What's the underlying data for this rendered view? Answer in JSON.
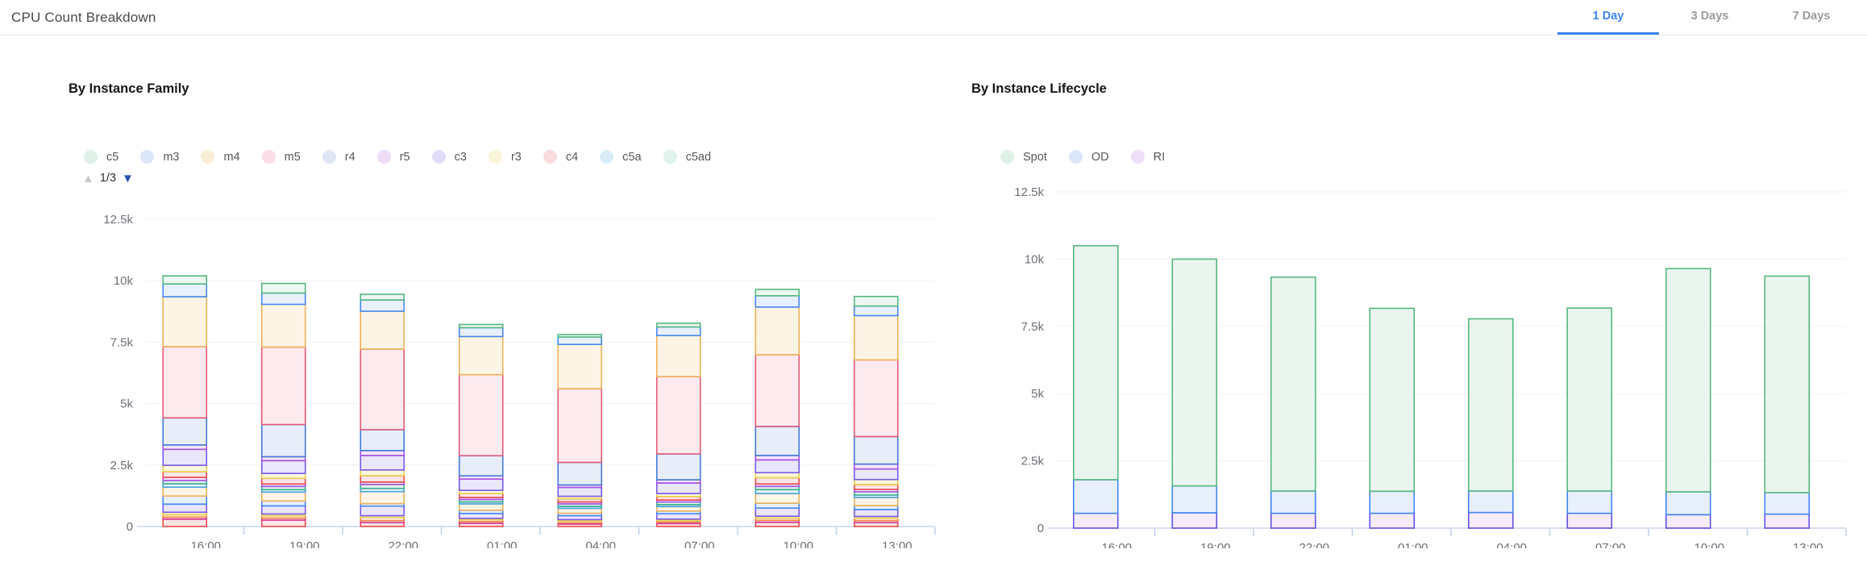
{
  "header": {
    "title": "CPU Count Breakdown",
    "tabs": [
      {
        "label": "1 Day",
        "active": true
      },
      {
        "label": "3 Days",
        "active": false
      },
      {
        "label": "7 Days",
        "active": false
      }
    ]
  },
  "colors": {
    "accent": "#3D85F4",
    "tab_inactive": "#9B9B9B",
    "axis_text": "#6E7079",
    "grid_line": "#F1F1F1",
    "axis_line": "#CBD5EA",
    "tick_line": "#C2CFEF",
    "pager_up_arrow": "#C9C9C9",
    "pager_down_arrow": "#2B50B4"
  },
  "chart_data": [
    {
      "type": "bar",
      "stacked": true,
      "title": "By Instance Family",
      "legend": {
        "page": "1/3",
        "items": [
          {
            "name": "c5",
            "swatch": "#DFF0E6"
          },
          {
            "name": "m3",
            "swatch": "#DCE7FB"
          },
          {
            "name": "m4",
            "swatch": "#FAEDD6"
          },
          {
            "name": "m5",
            "swatch": "#FADEE6"
          },
          {
            "name": "r4",
            "swatch": "#DFE7F7"
          },
          {
            "name": "r5",
            "swatch": "#EFDCF9"
          },
          {
            "name": "c3",
            "swatch": "#E3DDFB"
          },
          {
            "name": "r3",
            "swatch": "#FAF5D9"
          },
          {
            "name": "c4",
            "swatch": "#FADCDE"
          },
          {
            "name": "c5a",
            "swatch": "#D9EDF9"
          },
          {
            "name": "c5ad",
            "swatch": "#DFF2EB"
          }
        ]
      },
      "categories": [
        "16:00",
        "19:00",
        "22:00",
        "01:00",
        "04:00",
        "07:00",
        "10:00",
        "13:00"
      ],
      "ylim": [
        0,
        12500
      ],
      "yticks": [
        "0",
        "2.5k",
        "5k",
        "7.5k",
        "10k",
        "12.5k"
      ],
      "grid": true,
      "palette": [
        {
          "stroke": "#56B87F",
          "fill": "#EDF7F1"
        },
        {
          "stroke": "#4588F2",
          "fill": "#E9F0FD"
        },
        {
          "stroke": "#EFB259",
          "fill": "#FDF4E6"
        },
        {
          "stroke": "#E25A78",
          "fill": "#FCEAEF"
        },
        {
          "stroke": "#4479D6",
          "fill": "#E7EDF9"
        },
        {
          "stroke": "#A84FE3",
          "fill": "#F3E6FC"
        },
        {
          "stroke": "#7859EA",
          "fill": "#EAE6FC"
        },
        {
          "stroke": "#E9D14C",
          "fill": "#FBF7DD"
        },
        {
          "stroke": "#EC4B4B",
          "fill": "#FCE5E5"
        },
        {
          "stroke": "#45A3E0",
          "fill": "#E5F2FB"
        },
        {
          "stroke": "#3EAD8C",
          "fill": "#E3F5EE"
        },
        {
          "stroke": "#F08A3E",
          "fill": "#FCECDE"
        },
        {
          "stroke": "#D6399B",
          "fill": "#FAE0F0"
        }
      ],
      "series_bottom_to_top": [
        {
          "name": "",
          "palette": 8,
          "values": [
            300,
            260,
            160,
            130,
            100,
            120,
            170,
            160
          ]
        },
        {
          "name": "",
          "palette": 12,
          "values": [
            80,
            80,
            80,
            70,
            50,
            60,
            80,
            80
          ]
        },
        {
          "name": "",
          "palette": 11,
          "values": [
            100,
            100,
            130,
            80,
            80,
            70,
            100,
            100
          ]
        },
        {
          "name": "",
          "palette": 7,
          "values": [
            100,
            70,
            70,
            50,
            50,
            50,
            70,
            70
          ]
        },
        {
          "name": "",
          "palette": 6,
          "values": [
            330,
            330,
            390,
            200,
            160,
            220,
            330,
            280
          ]
        },
        {
          "name": "",
          "palette": 1,
          "values": [
            330,
            200,
            100,
            130,
            100,
            110,
            200,
            160
          ]
        },
        {
          "name": "",
          "palette": 2,
          "values": [
            360,
            360,
            490,
            260,
            200,
            180,
            390,
            330
          ]
        },
        {
          "name": "c5a",
          "palette": 9,
          "values": [
            140,
            100,
            130,
            80,
            80,
            80,
            160,
            100
          ]
        },
        {
          "name": "c5ad",
          "palette": 10,
          "values": [
            130,
            130,
            160,
            100,
            100,
            110,
            130,
            130
          ]
        },
        {
          "name": "",
          "palette": 5,
          "values": [
            130,
            100,
            100,
            80,
            80,
            80,
            100,
            100
          ]
        },
        {
          "name": "c4",
          "palette": 8,
          "values": [
            230,
            230,
            260,
            160,
            130,
            140,
            260,
            200
          ]
        },
        {
          "name": "r3",
          "palette": 7,
          "values": [
            260,
            200,
            230,
            130,
            100,
            120,
            200,
            200
          ]
        },
        {
          "name": "c3",
          "palette": 6,
          "values": [
            650,
            520,
            590,
            460,
            360,
            430,
            520,
            430
          ]
        },
        {
          "name": "r5",
          "palette": 5,
          "values": [
            180,
            160,
            200,
            130,
            100,
            130,
            180,
            200
          ]
        },
        {
          "name": "r4",
          "palette": 4,
          "values": [
            1100,
            1310,
            850,
            820,
            920,
            1050,
            1180,
            1120
          ]
        },
        {
          "name": "m5",
          "palette": 3,
          "values": [
            2900,
            3150,
            3280,
            3300,
            3000,
            3150,
            2920,
            3120
          ]
        },
        {
          "name": "m4",
          "palette": 2,
          "values": [
            2030,
            1740,
            1540,
            1550,
            1800,
            1670,
            1940,
            1800
          ]
        },
        {
          "name": "m3",
          "palette": 1,
          "values": [
            520,
            460,
            460,
            360,
            300,
            350,
            460,
            390
          ]
        },
        {
          "name": "c5",
          "palette": 0,
          "values": [
            330,
            390,
            230,
            130,
            100,
            150,
            260,
            390
          ]
        }
      ]
    },
    {
      "type": "bar",
      "stacked": true,
      "title": "By Instance Lifecycle",
      "legend": {
        "page": "",
        "items": [
          {
            "name": "Spot",
            "swatch": "#DFF0E6"
          },
          {
            "name": "OD",
            "swatch": "#DCE7FB"
          },
          {
            "name": "RI",
            "swatch": "#F0DFF8"
          }
        ]
      },
      "categories": [
        "16:00",
        "19:00",
        "22:00",
        "01:00",
        "04:00",
        "07:00",
        "10:00",
        "13:00"
      ],
      "ylim": [
        0,
        12500
      ],
      "yticks": [
        "0",
        "2.5k",
        "5k",
        "7.5k",
        "10k",
        "12.5k"
      ],
      "grid": true,
      "palette": [
        {
          "stroke": "#56B87F",
          "fill": "#EBF5EF"
        },
        {
          "stroke": "#4285F4",
          "fill": "#E8EFFC"
        },
        {
          "stroke": "#6252E2",
          "fill": "#F6EBFB"
        }
      ],
      "series_bottom_to_top": [
        {
          "name": "RI",
          "palette": 2,
          "values": [
            550,
            570,
            550,
            550,
            580,
            550,
            500,
            520
          ]
        },
        {
          "name": "OD",
          "palette": 1,
          "values": [
            1250,
            1000,
            830,
            820,
            800,
            830,
            850,
            800
          ]
        },
        {
          "name": "Spot",
          "palette": 0,
          "values": [
            8700,
            8430,
            7950,
            6800,
            6400,
            6800,
            8300,
            8050
          ]
        }
      ]
    }
  ]
}
